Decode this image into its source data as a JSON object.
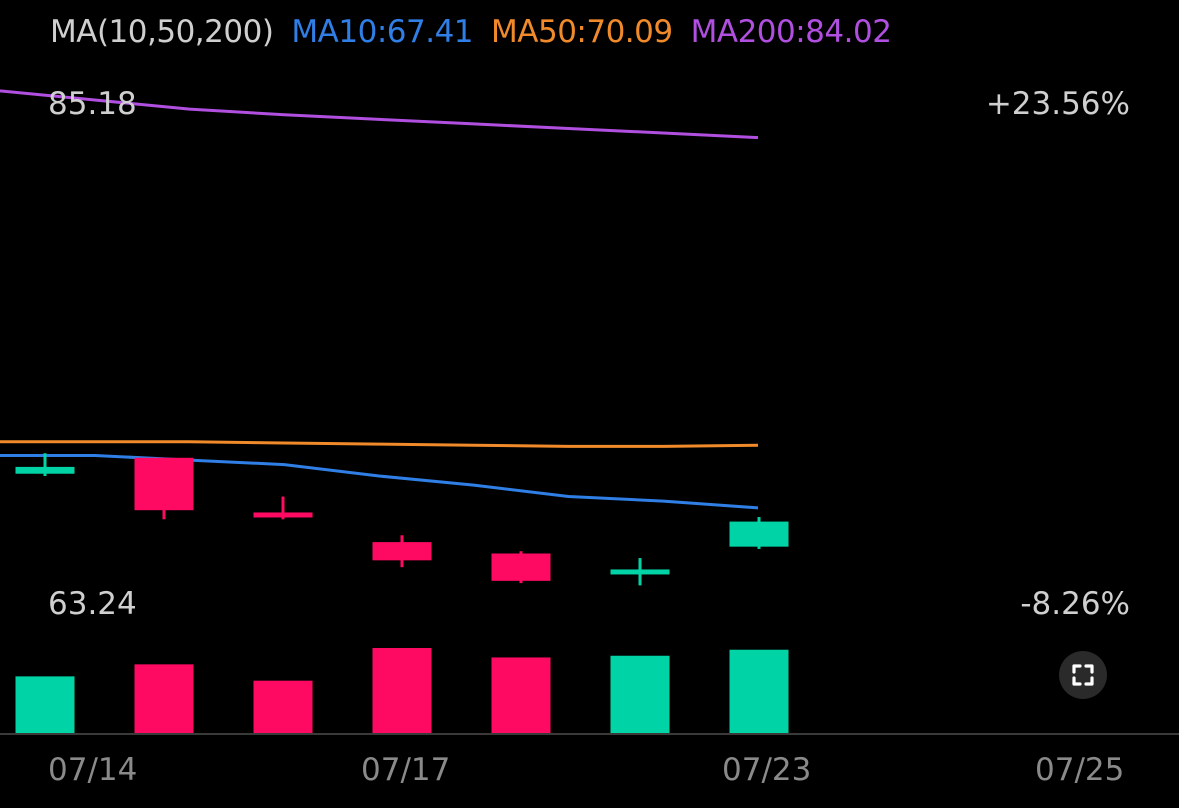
{
  "legend": {
    "ma_label": "MA(10,50,200)",
    "ma10": "MA10:67.41",
    "ma50": "MA50:70.09",
    "ma200": "MA200:84.02"
  },
  "price_axis": {
    "high": "85.18",
    "low": "63.24"
  },
  "pct_axis": {
    "high": "+23.56%",
    "low": "-8.26%"
  },
  "colors": {
    "up": "#00d4a6",
    "down": "#ff0a63",
    "ma10": "#2f7fe6",
    "ma50": "#f08a2a",
    "ma200": "#b04fe0",
    "label_gray": "#cfcfcf"
  },
  "icons": {
    "expand": "expand-icon"
  },
  "chart_data": {
    "type": "candlestick",
    "price_range": [
      63.24,
      85.18
    ],
    "x_ticks": [
      "07/14",
      "07/17",
      "07/23",
      "07/25"
    ],
    "candles": [
      {
        "open": 69.3,
        "close": 69.0,
        "high": 69.9,
        "low": 68.9,
        "dir": "up"
      },
      {
        "open": 69.7,
        "close": 67.4,
        "high": 69.7,
        "low": 67.0,
        "dir": "down"
      },
      {
        "open": 67.3,
        "close": 67.1,
        "high": 68.0,
        "low": 67.0,
        "dir": "down"
      },
      {
        "open": 66.0,
        "close": 65.2,
        "high": 66.3,
        "low": 64.9,
        "dir": "down"
      },
      {
        "open": 65.5,
        "close": 64.3,
        "high": 65.6,
        "low": 64.2,
        "dir": "down"
      },
      {
        "open": 64.8,
        "close": 64.7,
        "high": 65.3,
        "low": 64.1,
        "dir": "up"
      },
      {
        "open": 65.8,
        "close": 66.9,
        "high": 67.1,
        "low": 65.7,
        "dir": "up"
      }
    ],
    "volume": [
      0.67,
      0.81,
      0.62,
      1.0,
      0.89,
      0.91,
      0.98
    ],
    "ma10": [
      69.8,
      69.8,
      69.6,
      69.4,
      68.9,
      68.5,
      68.0,
      67.8,
      67.5
    ],
    "ma50": [
      70.4,
      70.4,
      70.4,
      70.35,
      70.3,
      70.25,
      70.2,
      70.2,
      70.25
    ],
    "ma200": [
      85.8,
      85.4,
      85.0,
      84.75,
      84.55,
      84.35,
      84.15,
      83.95,
      83.75
    ]
  }
}
